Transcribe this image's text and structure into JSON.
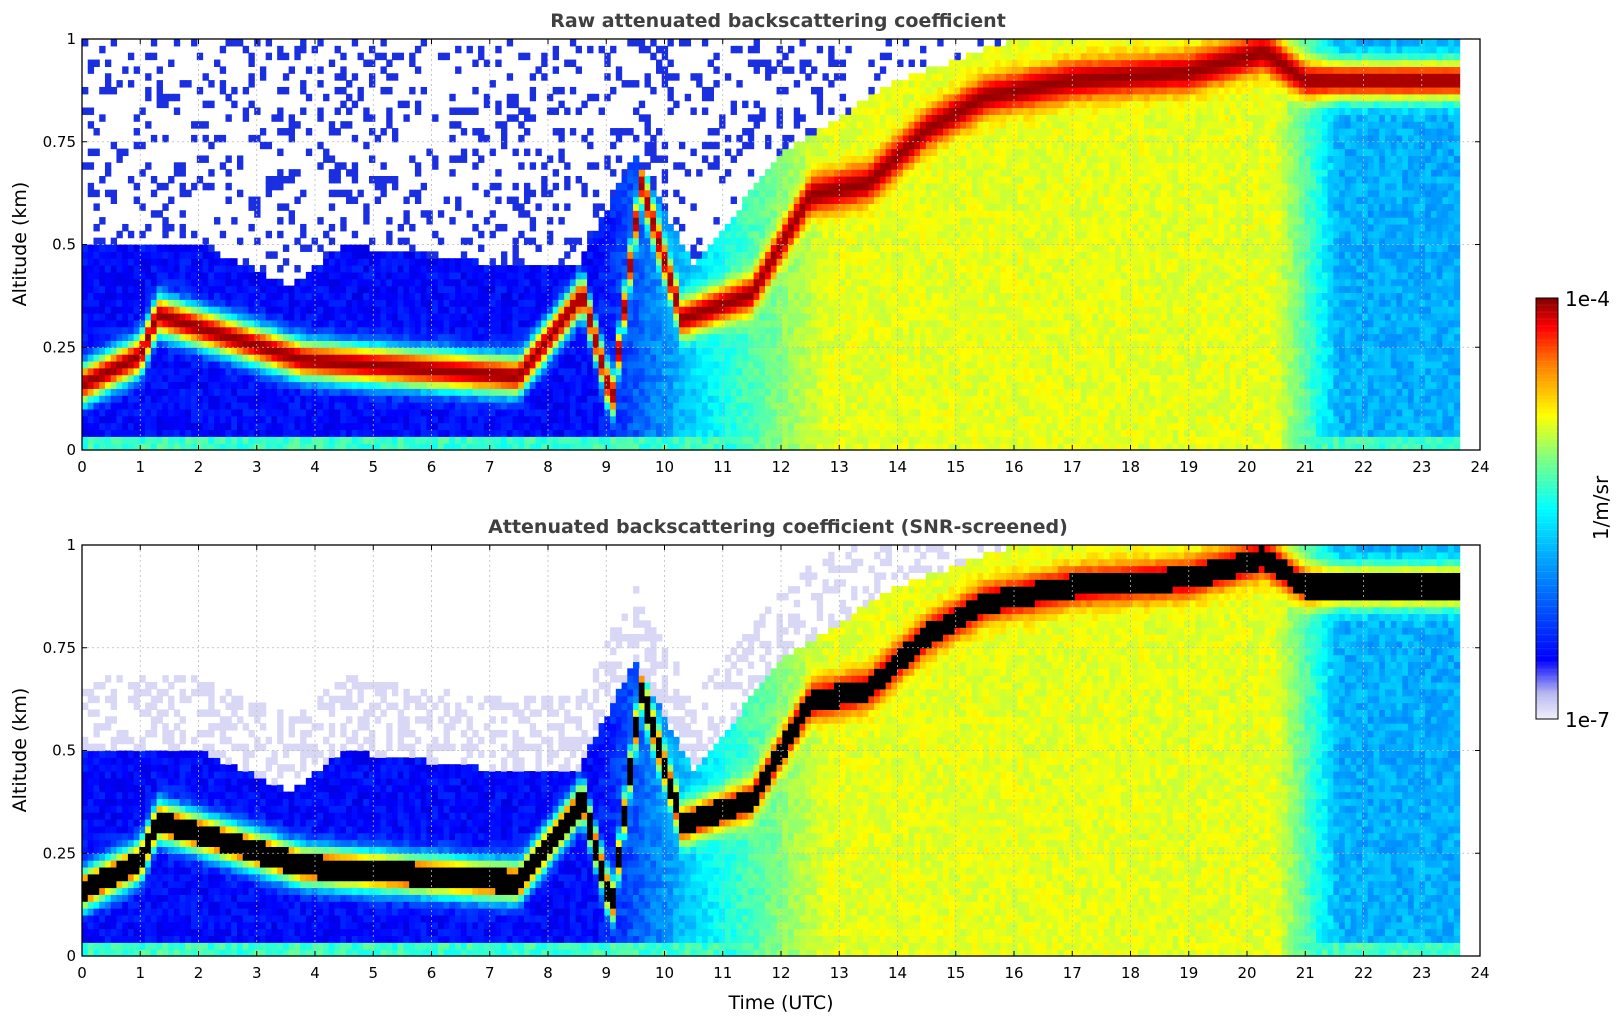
{
  "chart_data": [
    {
      "type": "heatmap",
      "title": "Raw attenuated backscattering coefficient",
      "xlabel": "",
      "ylabel": "Altitude (km)",
      "xlim": [
        0,
        24
      ],
      "ylim": [
        0,
        1
      ],
      "x_ticks": [
        "0",
        "1",
        "2",
        "3",
        "4",
        "5",
        "6",
        "7",
        "8",
        "9",
        "10",
        "11",
        "12",
        "13",
        "14",
        "15",
        "16",
        "17",
        "18",
        "19",
        "20",
        "21",
        "22",
        "23",
        "24"
      ],
      "y_ticks": [
        "0",
        "0.25",
        "0.5",
        "0.75",
        "1"
      ],
      "grid": true,
      "data_end_hour": 23.65,
      "ground_band_top_km": 0.03,
      "layer_top_km": [
        [
          0,
          0.5
        ],
        [
          1,
          0.5
        ],
        [
          2,
          0.5
        ],
        [
          3.6,
          0.4
        ],
        [
          4.5,
          0.5
        ],
        [
          7.3,
          0.45
        ],
        [
          8.5,
          0.45
        ],
        [
          9.5,
          0.72
        ],
        [
          10.5,
          0.45
        ],
        [
          12,
          0.72
        ],
        [
          14,
          0.9
        ],
        [
          16,
          1.0
        ],
        [
          24,
          1.0
        ]
      ],
      "max_layer_height_km": [
        [
          0,
          0.16
        ],
        [
          1,
          0.23
        ],
        [
          1.3,
          0.33
        ],
        [
          3.8,
          0.22
        ],
        [
          7.5,
          0.18
        ],
        [
          8.6,
          0.38
        ],
        [
          9.1,
          0.12
        ],
        [
          9.6,
          0.65
        ],
        [
          10.3,
          0.32
        ],
        [
          11.5,
          0.38
        ],
        [
          12.5,
          0.62
        ],
        [
          13.5,
          0.65
        ],
        [
          14.5,
          0.78
        ],
        [
          15.5,
          0.86
        ],
        [
          17,
          0.9
        ],
        [
          19,
          0.92
        ],
        [
          20.3,
          0.97
        ],
        [
          21,
          0.9
        ]
      ],
      "colorbar": {
        "min_label": "1e-7",
        "max_label": "1e-4",
        "unit": "1/m/sr",
        "scale": "log"
      }
    },
    {
      "type": "heatmap",
      "title": "Attenuated backscattering coefficient (SNR-screened)",
      "xlabel": "Time (UTC)",
      "ylabel": "Altitude (km)",
      "xlim": [
        0,
        24
      ],
      "ylim": [
        0,
        1
      ],
      "x_ticks": [
        "0",
        "1",
        "2",
        "3",
        "4",
        "5",
        "6",
        "7",
        "8",
        "9",
        "10",
        "11",
        "12",
        "13",
        "14",
        "15",
        "16",
        "17",
        "18",
        "19",
        "20",
        "21",
        "22",
        "23",
        "24"
      ],
      "y_ticks": [
        "0",
        "0.25",
        "0.5",
        "0.75",
        "1"
      ],
      "grid": true,
      "data_end_hour": 23.65,
      "saturated_color": "#000000",
      "colorbar": {
        "min_label": "1e-7",
        "max_label": "1e-4",
        "unit": "1/m/sr",
        "scale": "log"
      }
    }
  ],
  "colors": {
    "jet_dark_red": "#800000",
    "jet_red": "#ff0000",
    "jet_yellow": "#ffff00",
    "jet_cyan": "#00ffff",
    "jet_blue": "#0000ff",
    "low_lavender": "#e6e6f8",
    "saturated": "#000000",
    "title_gray": "#404040",
    "grid_gray": "#bbbbbb"
  }
}
